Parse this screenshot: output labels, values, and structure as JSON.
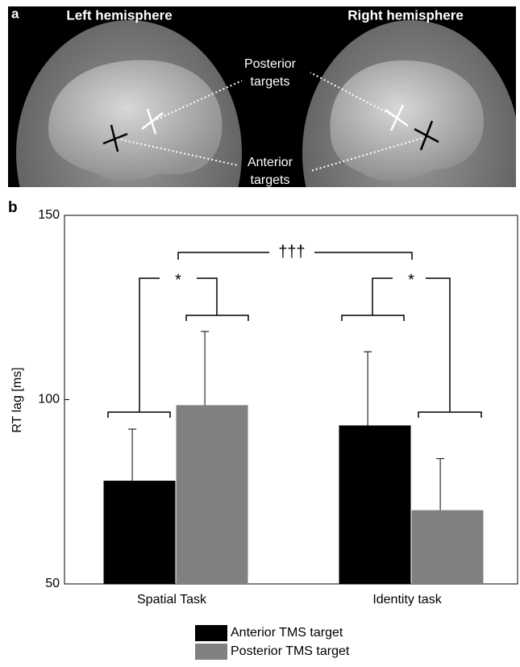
{
  "panel_a": {
    "label": "a",
    "left_title": "Left hemisphere",
    "right_title": "Right hemisphere",
    "posterior_label": [
      "Posterior",
      "targets"
    ],
    "anterior_label": [
      "Anterior",
      "targets"
    ]
  },
  "chart_data": {
    "type": "bar",
    "panel_label": "b",
    "y_label": "RT lag [ms]",
    "categories": [
      "Spatial Task",
      "Identity task"
    ],
    "series": [
      {
        "name": "Anterior TMS target",
        "color": "#000000",
        "values": [
          78,
          93
        ],
        "errors": [
          14,
          20
        ]
      },
      {
        "name": "Posterior TMS target",
        "color": "#808080",
        "values": [
          98.5,
          70
        ],
        "errors": [
          20,
          14
        ]
      }
    ],
    "ylim": [
      50,
      150
    ],
    "yticks": [
      50,
      100,
      150
    ],
    "annotations": [
      "*",
      "*",
      "†††"
    ]
  }
}
